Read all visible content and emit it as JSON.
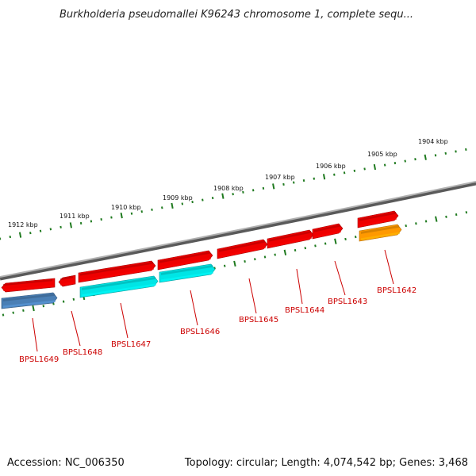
{
  "title": "Burkholderia pseudomallei K96243 chromosome 1, complete sequ...",
  "footer": {
    "accession": "Accession: NC_006350",
    "summary": "Topology: circular; Length: 4,074,542 bp; Genes: 3,468"
  },
  "colors": {
    "backbone": "#8a8a8a",
    "tick": "#1f7a1f",
    "label": "#cc0000",
    "gene_red": "#ee0000",
    "gene_cyan": "#00e5e5",
    "gene_blue": "#4a7fb5",
    "gene_orange": "#ff9900"
  },
  "scale_labels": [
    "1912 kbp",
    "1911 kbp",
    "1910 kbp",
    "1909 kbp",
    "1908 kbp",
    "1907 kbp",
    "1906 kbp",
    "1905 kbp",
    "1904 kbp"
  ],
  "genes": [
    {
      "name": "BPSL1649",
      "color": "blue"
    },
    {
      "name": "BPSL1648",
      "color": "red"
    },
    {
      "name": "BPSL1647",
      "color": "cyan"
    },
    {
      "name": "BPSL1646",
      "color": "cyan"
    },
    {
      "name": "BPSL1645",
      "color": "red"
    },
    {
      "name": "BPSL1644",
      "color": "red"
    },
    {
      "name": "BPSL1643",
      "color": "red"
    },
    {
      "name": "BPSL1642",
      "color": "orange"
    }
  ]
}
